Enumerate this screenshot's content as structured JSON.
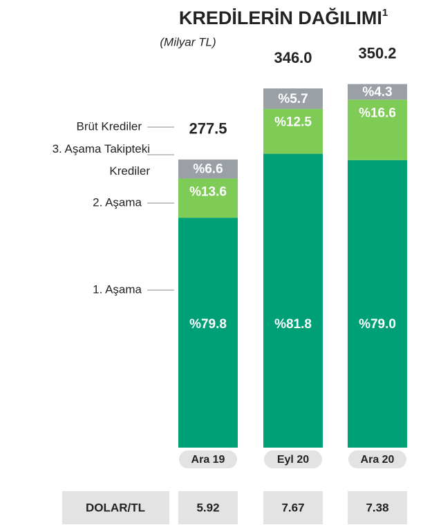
{
  "chart_data": {
    "type": "stacked_bar",
    "title": "KREDİLERİN DAĞILIMI",
    "title_note": "1",
    "subtitle": "(Milyar TL)",
    "categories": [
      "Ara 19",
      "Eyl 20",
      "Ara 20"
    ],
    "totals": {
      "name": "Brüt Krediler",
      "values": [
        277.5,
        346.0,
        350.2
      ],
      "value_labels": [
        "277.5",
        "346.0",
        "350.2"
      ]
    },
    "series": [
      {
        "name": "1. Aşama",
        "color": "#00a076",
        "values": [
          79.8,
          81.8,
          79.0
        ],
        "value_labels": [
          "%79.8",
          "%81.8",
          "%79.0"
        ]
      },
      {
        "name": "2. Aşama",
        "color": "#7ecb55",
        "values": [
          13.6,
          12.5,
          16.6
        ],
        "value_labels": [
          "%13.6",
          "%12.5",
          "%16.6"
        ]
      },
      {
        "name": "3. Aşama Takipteki Krediler",
        "color": "#9aa0a6",
        "values": [
          6.6,
          5.7,
          4.3
        ],
        "value_labels": [
          "%6.6",
          "%5.7",
          "%4.3"
        ]
      }
    ],
    "exchange_rate": {
      "label": "DOLAR/TL",
      "values": [
        5.92,
        7.67,
        7.38
      ]
    }
  }
}
